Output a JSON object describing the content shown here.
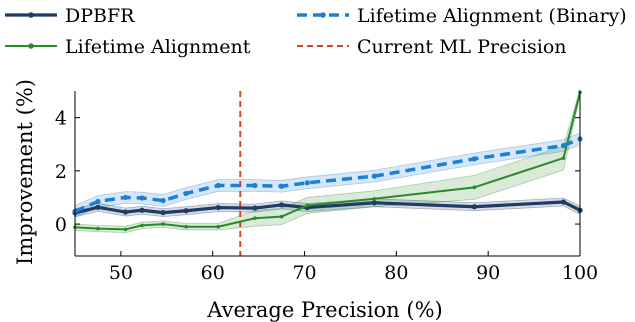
{
  "chart_data": {
    "type": "line",
    "xlabel": "Average Precision (%)",
    "ylabel": "Improvement (%)",
    "xlim": [
      45,
      100
    ],
    "ylim": [
      -1.2,
      5
    ],
    "xticks": [
      50,
      60,
      70,
      80,
      90,
      100
    ],
    "yticks": [
      0,
      2,
      4
    ],
    "legend_placement": "top",
    "vline": {
      "name": "Current ML Precision",
      "x": 63,
      "color": "#d9441e"
    },
    "series": [
      {
        "name": "DPBFR",
        "color": "#1f3b66",
        "style": "solid",
        "x": [
          45,
          47.5,
          50.5,
          52.3,
          54.6,
          57.1,
          60.6,
          64.6,
          67.5,
          70.3,
          77.6,
          88.5,
          98.2,
          100
        ],
        "y": [
          0.42,
          0.63,
          0.45,
          0.52,
          0.43,
          0.5,
          0.62,
          0.6,
          0.72,
          0.62,
          0.8,
          0.65,
          0.83,
          0.52
        ],
        "band": [
          0.15,
          0.15,
          0.15,
          0.15,
          0.15,
          0.15,
          0.15,
          0.15,
          0.15,
          0.15,
          0.15,
          0.15,
          0.15,
          0.15
        ]
      },
      {
        "name": "Lifetime Alignment",
        "color": "#2a8a2a",
        "style": "solid",
        "x": [
          45,
          47.5,
          50.5,
          52.3,
          54.6,
          57.1,
          60.6,
          64.6,
          67.5,
          70.3,
          77.6,
          88.5,
          98.2,
          100
        ],
        "y": [
          -0.12,
          -0.17,
          -0.2,
          -0.05,
          0.0,
          -0.1,
          -0.1,
          0.22,
          0.28,
          0.7,
          0.95,
          1.38,
          2.48,
          4.95
        ],
        "band": [
          0.12,
          0.12,
          0.12,
          0.12,
          0.12,
          0.12,
          0.12,
          0.3,
          0.3,
          0.3,
          0.3,
          0.45,
          0.45,
          0.12
        ]
      },
      {
        "name": "Lifetime Alignment (Binary)",
        "color": "#1c7ed6",
        "style": "dashed",
        "x": [
          45,
          47.5,
          50.5,
          52.3,
          54.6,
          57.1,
          60.6,
          64.6,
          67.5,
          70.3,
          77.6,
          88.5,
          98.2,
          100
        ],
        "y": [
          0.48,
          0.85,
          1.0,
          0.98,
          0.88,
          1.15,
          1.45,
          1.45,
          1.42,
          1.55,
          1.8,
          2.45,
          2.95,
          3.2
        ],
        "band": [
          0.22,
          0.22,
          0.22,
          0.22,
          0.22,
          0.22,
          0.22,
          0.22,
          0.22,
          0.22,
          0.22,
          0.22,
          0.22,
          0.22
        ]
      }
    ]
  }
}
